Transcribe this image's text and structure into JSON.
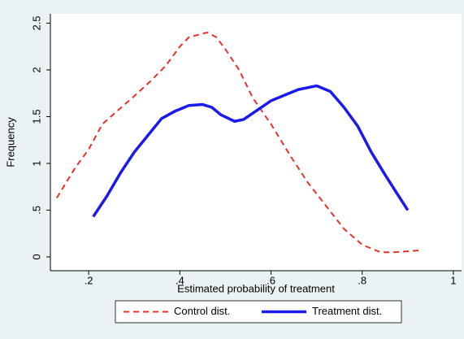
{
  "chart_data": {
    "type": "line",
    "x_label": "Estimated probability of treatment",
    "y_label": "Frequency",
    "xlim": [
      0.116,
      1.018
    ],
    "ylim": [
      -0.148,
      2.6
    ],
    "xticks": [
      {
        "value": 0.2,
        "label": ".2"
      },
      {
        "value": 0.4,
        "label": ".4"
      },
      {
        "value": 0.6,
        "label": ".6"
      },
      {
        "value": 0.8,
        "label": ".8"
      },
      1
    ],
    "yticks": [
      0,
      {
        "value": 0.5,
        "label": ".5"
      },
      1,
      1.5,
      2,
      2.5
    ],
    "grid": false,
    "legend": "bottom",
    "series": [
      {
        "name": "Control dist.",
        "color": "#e8322b",
        "dash": true,
        "x": [
          0.13,
          0.17,
          0.2,
          0.23,
          0.26,
          0.3,
          0.34,
          0.37,
          0.4,
          0.42,
          0.46,
          0.48,
          0.5,
          0.53,
          0.56,
          0.6,
          0.64,
          0.68,
          0.72,
          0.76,
          0.8,
          0.84,
          0.87,
          0.9,
          0.93
        ],
        "values": [
          0.63,
          0.95,
          1.15,
          1.42,
          1.55,
          1.72,
          1.9,
          2.05,
          2.25,
          2.35,
          2.4,
          2.35,
          2.22,
          2.0,
          1.7,
          1.42,
          1.1,
          0.8,
          0.55,
          0.3,
          0.13,
          0.05,
          0.05,
          0.06,
          0.07
        ]
      },
      {
        "name": "Treatment dist.",
        "color": "#1a1aee",
        "dash": false,
        "x": [
          0.21,
          0.24,
          0.27,
          0.3,
          0.33,
          0.36,
          0.39,
          0.42,
          0.45,
          0.47,
          0.49,
          0.52,
          0.54,
          0.57,
          0.6,
          0.63,
          0.66,
          0.7,
          0.73,
          0.76,
          0.79,
          0.82,
          0.85,
          0.88,
          0.9
        ],
        "values": [
          0.43,
          0.65,
          0.9,
          1.12,
          1.3,
          1.48,
          1.56,
          1.62,
          1.63,
          1.6,
          1.52,
          1.45,
          1.47,
          1.57,
          1.67,
          1.73,
          1.79,
          1.83,
          1.77,
          1.6,
          1.4,
          1.12,
          0.88,
          0.65,
          0.5
        ]
      }
    ]
  }
}
